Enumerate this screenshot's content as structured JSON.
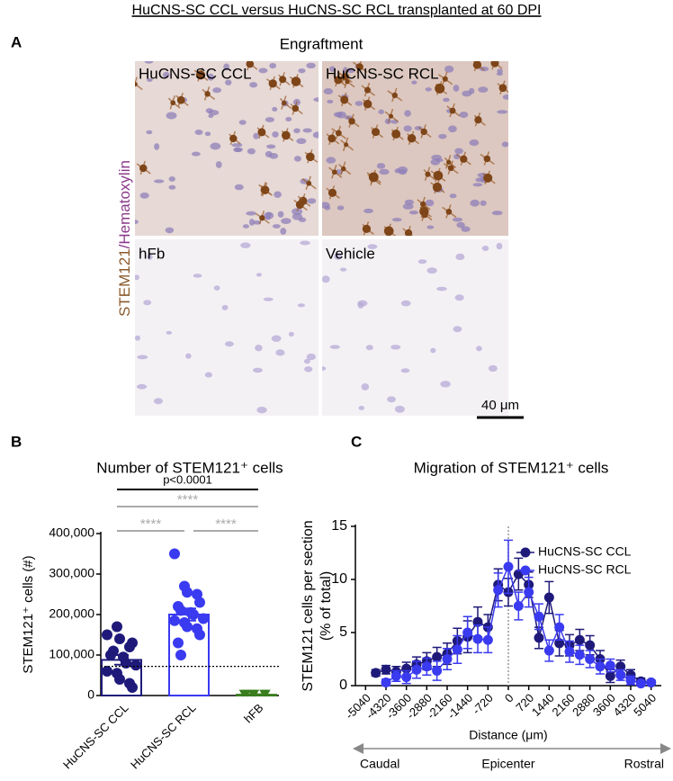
{
  "figure": {
    "title": "HuCNS-SC CCL versus HuCNS-SC RCL transplanted at 60 DPI",
    "panel_a": {
      "label": "A",
      "title": "Engraftment",
      "stain": [
        "STEM121",
        "/Hematoxylin"
      ],
      "tiles": [
        "HuCNS-SC CCL",
        "HuCNS-SC RCL",
        "hFb",
        "Vehicle"
      ],
      "scale_bar": "40 μm"
    }
  },
  "chart_data": [
    {
      "panel": "B",
      "type": "bar",
      "title": "Number of STEM121⁺ cells",
      "ylabel": "STEM121⁺ cells (#)",
      "categories": [
        "HuCNS-SC CCL",
        "HuCNS-SC RCL",
        "hFB"
      ],
      "values": [
        88000,
        200000,
        2000
      ],
      "errors": [
        12000,
        15000,
        1000
      ],
      "colors": [
        "#1f1a7a",
        "#3a3af0",
        "#3a7d1e"
      ],
      "points": [
        [
          150000,
          170000,
          140000,
          120000,
          130000,
          100000,
          110000,
          95000,
          80000,
          75000,
          60000,
          55000,
          40000,
          30000,
          20000
        ],
        [
          350000,
          270000,
          255000,
          250000,
          230000,
          220000,
          210000,
          205000,
          200000,
          190000,
          185000,
          180000,
          170000,
          165000,
          150000,
          130000,
          100000
        ],
        [
          3000,
          3000,
          3000,
          3000,
          3000,
          3000
        ]
      ],
      "reference_line": 72000,
      "annotations": [
        "p<0.0001",
        "****",
        "****",
        "****"
      ],
      "ylim": [
        0,
        400000
      ],
      "yticks": [
        0,
        {
          "value": 100000,
          "label": "100,000"
        },
        {
          "value": 200000,
          "label": "200,000"
        },
        {
          "value": 300000,
          "label": "300,000"
        },
        {
          "value": 400000,
          "label": "400,000"
        }
      ]
    },
    {
      "panel": "C",
      "type": "line",
      "title": "Migration of STEM121⁺ cells",
      "ylabel": [
        "STEM121 cells per section",
        "(% of total)"
      ],
      "xlabel": "Distance (μm)",
      "x": [
        -4680,
        -4320,
        -3960,
        -3600,
        -3240,
        -2880,
        -2520,
        -2160,
        -1800,
        -1440,
        -1080,
        -720,
        -360,
        0,
        360,
        720,
        1080,
        1440,
        1800,
        2160,
        2520,
        2880,
        3240,
        3600,
        3960,
        4320,
        4680,
        5040
      ],
      "series": [
        {
          "name": "HuCNS-SC CCL",
          "color": "#1f1a7a",
          "values": [
            1.2,
            1.5,
            1.3,
            1.6,
            2.0,
            2.3,
            2.7,
            3.0,
            4.2,
            4.6,
            6.0,
            5.5,
            9.5,
            8.8,
            10.5,
            9.5,
            4.5,
            8.3,
            4.0,
            3.8,
            4.3,
            3.8,
            2.5,
            0.9,
            1.8,
            1.0,
            0.4,
            0.3
          ],
          "errors": [
            0.3,
            0.4,
            0.5,
            0.6,
            0.7,
            0.8,
            0.9,
            1.0,
            1.2,
            1.5,
            1.4,
            1.2,
            1.5,
            1.3,
            1.5,
            1.2,
            1.0,
            1.5,
            1.2,
            1.0,
            1.0,
            0.9,
            0.8,
            0.6,
            0.6,
            0.5,
            0.3,
            0.2
          ]
        },
        {
          "name": "HuCNS-SC RCL",
          "color": "#3a3af0",
          "values": [
            null,
            0.3,
            0.9,
            0.8,
            1.5,
            1.8,
            1.4,
            2.5,
            3.4,
            5.0,
            4.4,
            4.3,
            9.0,
            11.2,
            7.5,
            8.8,
            6.5,
            3.3,
            5.5,
            3.2,
            2.9,
            2.5,
            1.8,
            1.9,
            1.0,
            0.5,
            0.2,
            0.3
          ],
          "errors": [
            null,
            0.3,
            0.5,
            0.6,
            0.8,
            0.8,
            0.9,
            1.0,
            1.3,
            1.5,
            1.3,
            1.2,
            1.6,
            2.5,
            1.3,
            1.4,
            1.2,
            1.0,
            1.2,
            1.0,
            0.9,
            0.8,
            0.7,
            0.6,
            0.5,
            0.4,
            0.2,
            0.2
          ]
        }
      ],
      "reference_x": 0,
      "legend": "upper right",
      "axis_labels": [
        "Caudal",
        "Epicenter",
        "Rostral"
      ],
      "xlim": [
        -5400,
        5400
      ],
      "xticks": [
        -5040,
        -4320,
        -3600,
        -2880,
        -2160,
        -1440,
        -720,
        0,
        720,
        1440,
        2160,
        2880,
        3600,
        4320,
        5040
      ],
      "ylim": [
        0,
        15
      ],
      "yticks": [
        0,
        5,
        10,
        15
      ]
    }
  ]
}
